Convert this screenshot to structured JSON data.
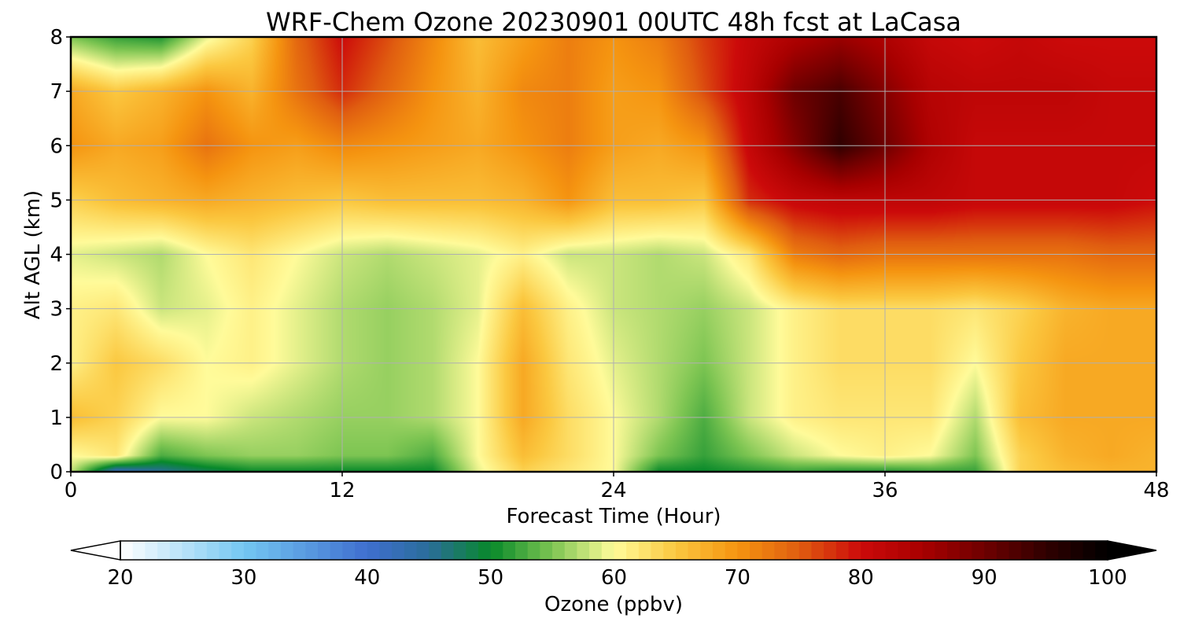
{
  "chart_data": {
    "type": "heatmap",
    "title": "WRF-Chem Ozone  20230901 00UTC 48h fcst at LaCasa",
    "xlabel": "Forecast Time (Hour)",
    "ylabel": "Alt AGL (km)",
    "xlim": [
      0,
      48
    ],
    "ylim": [
      0,
      8
    ],
    "x_ticks": [
      "0",
      "12",
      "24",
      "36",
      "48"
    ],
    "y_ticks": [
      "0",
      "1",
      "2",
      "3",
      "4",
      "5",
      "6",
      "7",
      "8"
    ],
    "grid": true,
    "colorbar": {
      "label": "Ozone  (ppbv)",
      "min": 20,
      "max": 100,
      "ticks": [
        "20",
        "30",
        "40",
        "50",
        "60",
        "70",
        "80",
        "90",
        "100"
      ],
      "extend": "both",
      "colors": [
        [
          20,
          "#ffffff"
        ],
        [
          30,
          "#74c7f2"
        ],
        [
          40,
          "#3f6fcf"
        ],
        [
          45,
          "#2a6d9a"
        ],
        [
          50,
          "#07892a"
        ],
        [
          55,
          "#7dc552"
        ],
        [
          60,
          "#fffb9a"
        ],
        [
          65,
          "#fbc840"
        ],
        [
          70,
          "#f59410"
        ],
        [
          75,
          "#e05d10"
        ],
        [
          80,
          "#cc0a0a"
        ],
        [
          85,
          "#a80000"
        ],
        [
          90,
          "#6e0000"
        ],
        [
          95,
          "#300000"
        ],
        [
          100,
          "#000000"
        ]
      ]
    },
    "altitudes_km": [
      0,
      0.3,
      1,
      2,
      3,
      4,
      5,
      6,
      7,
      8
    ],
    "times_h": [
      0,
      2,
      4,
      6,
      8,
      10,
      12,
      14,
      16,
      18,
      20,
      22,
      24,
      26,
      28,
      30,
      32,
      34,
      36,
      38,
      40,
      42,
      44,
      46,
      48
    ],
    "ozone_ppbv": [
      [
        58,
        42,
        45,
        48,
        50,
        50,
        50,
        50,
        50,
        59,
        64,
        62,
        60,
        50,
        50,
        51,
        52,
        51,
        51,
        52,
        52,
        64,
        66,
        67,
        67
      ],
      [
        60,
        62,
        53,
        55,
        56,
        56,
        55,
        55,
        53,
        60,
        66,
        63,
        60,
        55,
        52,
        55,
        58,
        60,
        61,
        60,
        55,
        64,
        67,
        68,
        67
      ],
      [
        66,
        64,
        60,
        60,
        58,
        57,
        56,
        56,
        57,
        60,
        68,
        63,
        60,
        57,
        53,
        58,
        61,
        62,
        62,
        62,
        57,
        66,
        68,
        68,
        68
      ],
      [
        61,
        65,
        63,
        60,
        61,
        59,
        57,
        56,
        57,
        60,
        68,
        62,
        59,
        57,
        55,
        58,
        61,
        63,
        63,
        63,
        60,
        65,
        68,
        68,
        68
      ],
      [
        61,
        62,
        58,
        59,
        61,
        59,
        57,
        56,
        57,
        59,
        66,
        61,
        58,
        57,
        56,
        58,
        61,
        63,
        63,
        63,
        62,
        64,
        67,
        68,
        68
      ],
      [
        59,
        58,
        57,
        60,
        62,
        60,
        58,
        57,
        58,
        59,
        61,
        58,
        58,
        57,
        58,
        62,
        72,
        74,
        73,
        73,
        73,
        73,
        73,
        74,
        74
      ],
      [
        64,
        66,
        67,
        68,
        67,
        66,
        65,
        66,
        66,
        66,
        67,
        70,
        66,
        66,
        65,
        78,
        81,
        82,
        82,
        82,
        81,
        81,
        81,
        81,
        80
      ],
      [
        70,
        68,
        69,
        73,
        70,
        69,
        71,
        70,
        69,
        68,
        70,
        72,
        69,
        68,
        70,
        81,
        88,
        95,
        90,
        84,
        81,
        81,
        81,
        81,
        81
      ],
      [
        68,
        65,
        67,
        70,
        67,
        73,
        78,
        74,
        70,
        67,
        71,
        72,
        69,
        70,
        76,
        82,
        90,
        93,
        88,
        83,
        82,
        82,
        82,
        81,
        81
      ],
      [
        55,
        52,
        51,
        59,
        64,
        74,
        80,
        76,
        71,
        66,
        69,
        72,
        70,
        72,
        77,
        81,
        84,
        86,
        84,
        81,
        80,
        81,
        80,
        80,
        80
      ]
    ]
  }
}
